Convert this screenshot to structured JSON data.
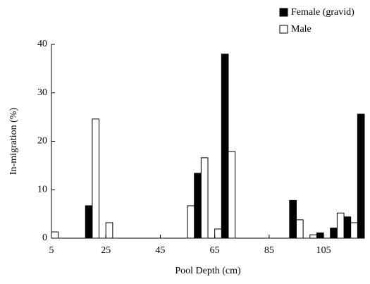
{
  "chart_data": {
    "type": "bar",
    "x_label": "Pool Depth (cm)",
    "y_label": "In-migration (%)",
    "x": [
      5,
      10,
      15,
      20,
      25,
      30,
      35,
      40,
      45,
      50,
      55,
      60,
      65,
      70,
      75,
      80,
      85,
      90,
      95,
      100,
      105,
      110,
      115,
      120
    ],
    "series": [
      {
        "name": "Female (gravid)",
        "color": "#000000",
        "values": [
          0,
          0,
          0,
          6.7,
          0,
          0,
          0,
          0,
          0,
          0,
          0,
          13.4,
          0,
          38.0,
          0,
          0,
          0,
          0,
          7.8,
          0,
          1.1,
          2.1,
          4.4,
          25.6
        ]
      },
      {
        "name": "Male",
        "color": "#ffffff",
        "values": [
          1.3,
          0,
          0,
          24.6,
          3.2,
          0,
          0,
          0,
          0,
          0,
          6.7,
          16.6,
          1.9,
          17.9,
          0,
          0,
          0,
          0,
          3.8,
          0.7,
          0,
          5.2,
          3.2,
          0
        ]
      }
    ],
    "xlim": [
      5,
      120
    ],
    "xticks": [
      5,
      25,
      45,
      65,
      85,
      105
    ],
    "ylim": [
      0,
      40
    ],
    "yticks": [
      0,
      10,
      20,
      30,
      40
    ],
    "legend": "top-right"
  }
}
